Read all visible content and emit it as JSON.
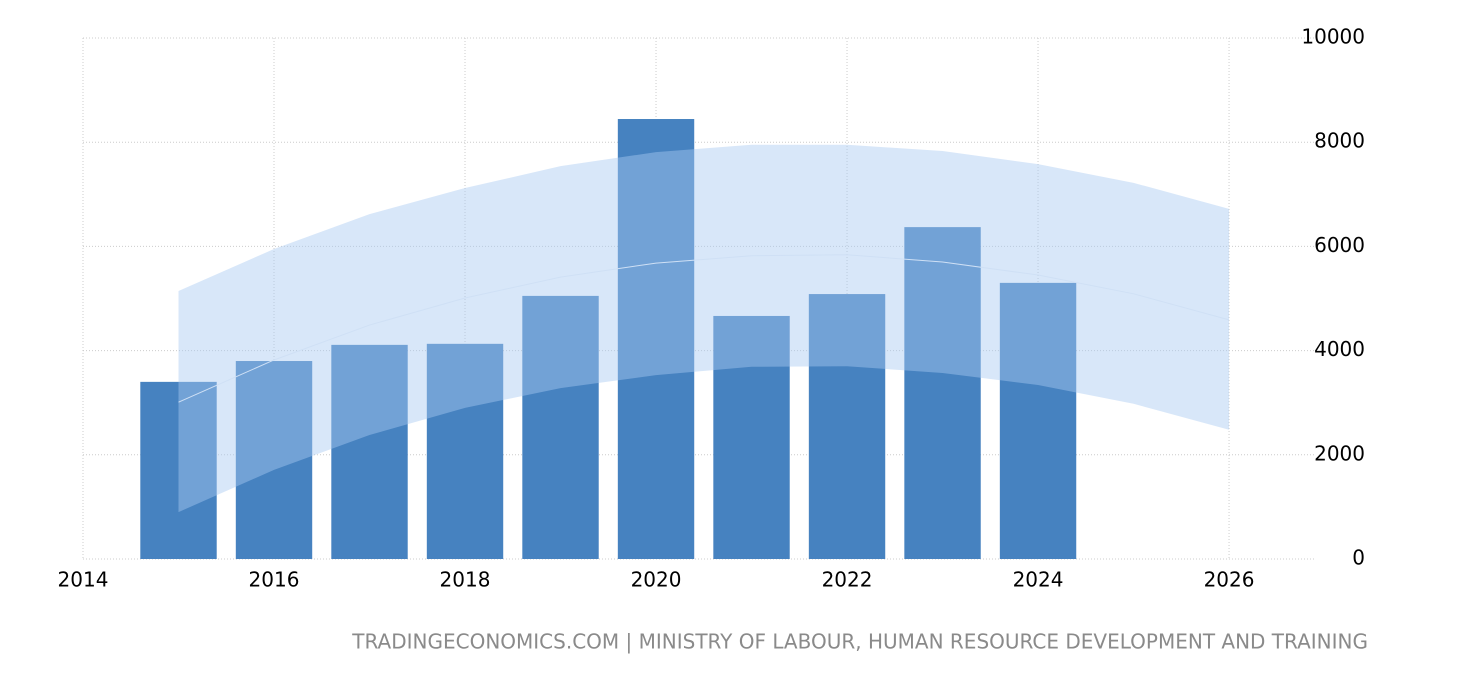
{
  "chart_data": {
    "type": "bar",
    "x": [
      2015,
      2016,
      2017,
      2018,
      2019,
      2020,
      2021,
      2022,
      2023,
      2024
    ],
    "values": [
      3400,
      3800,
      4110,
      4130,
      5050,
      8445,
      4665,
      5085,
      6370,
      5300
    ],
    "color": "#4682c0",
    "forecast": {
      "x": [
        2015,
        2016,
        2017,
        2018,
        2019,
        2020,
        2021,
        2022,
        2023,
        2024,
        2025,
        2026
      ],
      "values": [
        3010,
        3820,
        4490,
        5010,
        5410,
        5680,
        5820,
        5840,
        5700,
        5450,
        5090,
        4590
      ],
      "upper": [
        5145,
        5950,
        6620,
        7120,
        7540,
        7810,
        7950,
        7950,
        7830,
        7580,
        7220,
        6720
      ],
      "lower": [
        900,
        1710,
        2380,
        2900,
        3280,
        3530,
        3690,
        3700,
        3570,
        3340,
        2980,
        2480
      ],
      "color": "#a9c9f2"
    },
    "xlim": [
      2014,
      2026.9
    ],
    "xticks": [
      2014,
      2016,
      2018,
      2020,
      2022,
      2024,
      2026
    ],
    "ylim": [
      0,
      10000
    ],
    "yticks": [
      0,
      2000,
      4000,
      6000,
      8000,
      10000
    ],
    "grid": true,
    "source": "TRADINGECONOMICS.COM | MINISTRY OF LABOUR, HUMAN RESOURCE DEVELOPMENT AND TRAINING"
  }
}
